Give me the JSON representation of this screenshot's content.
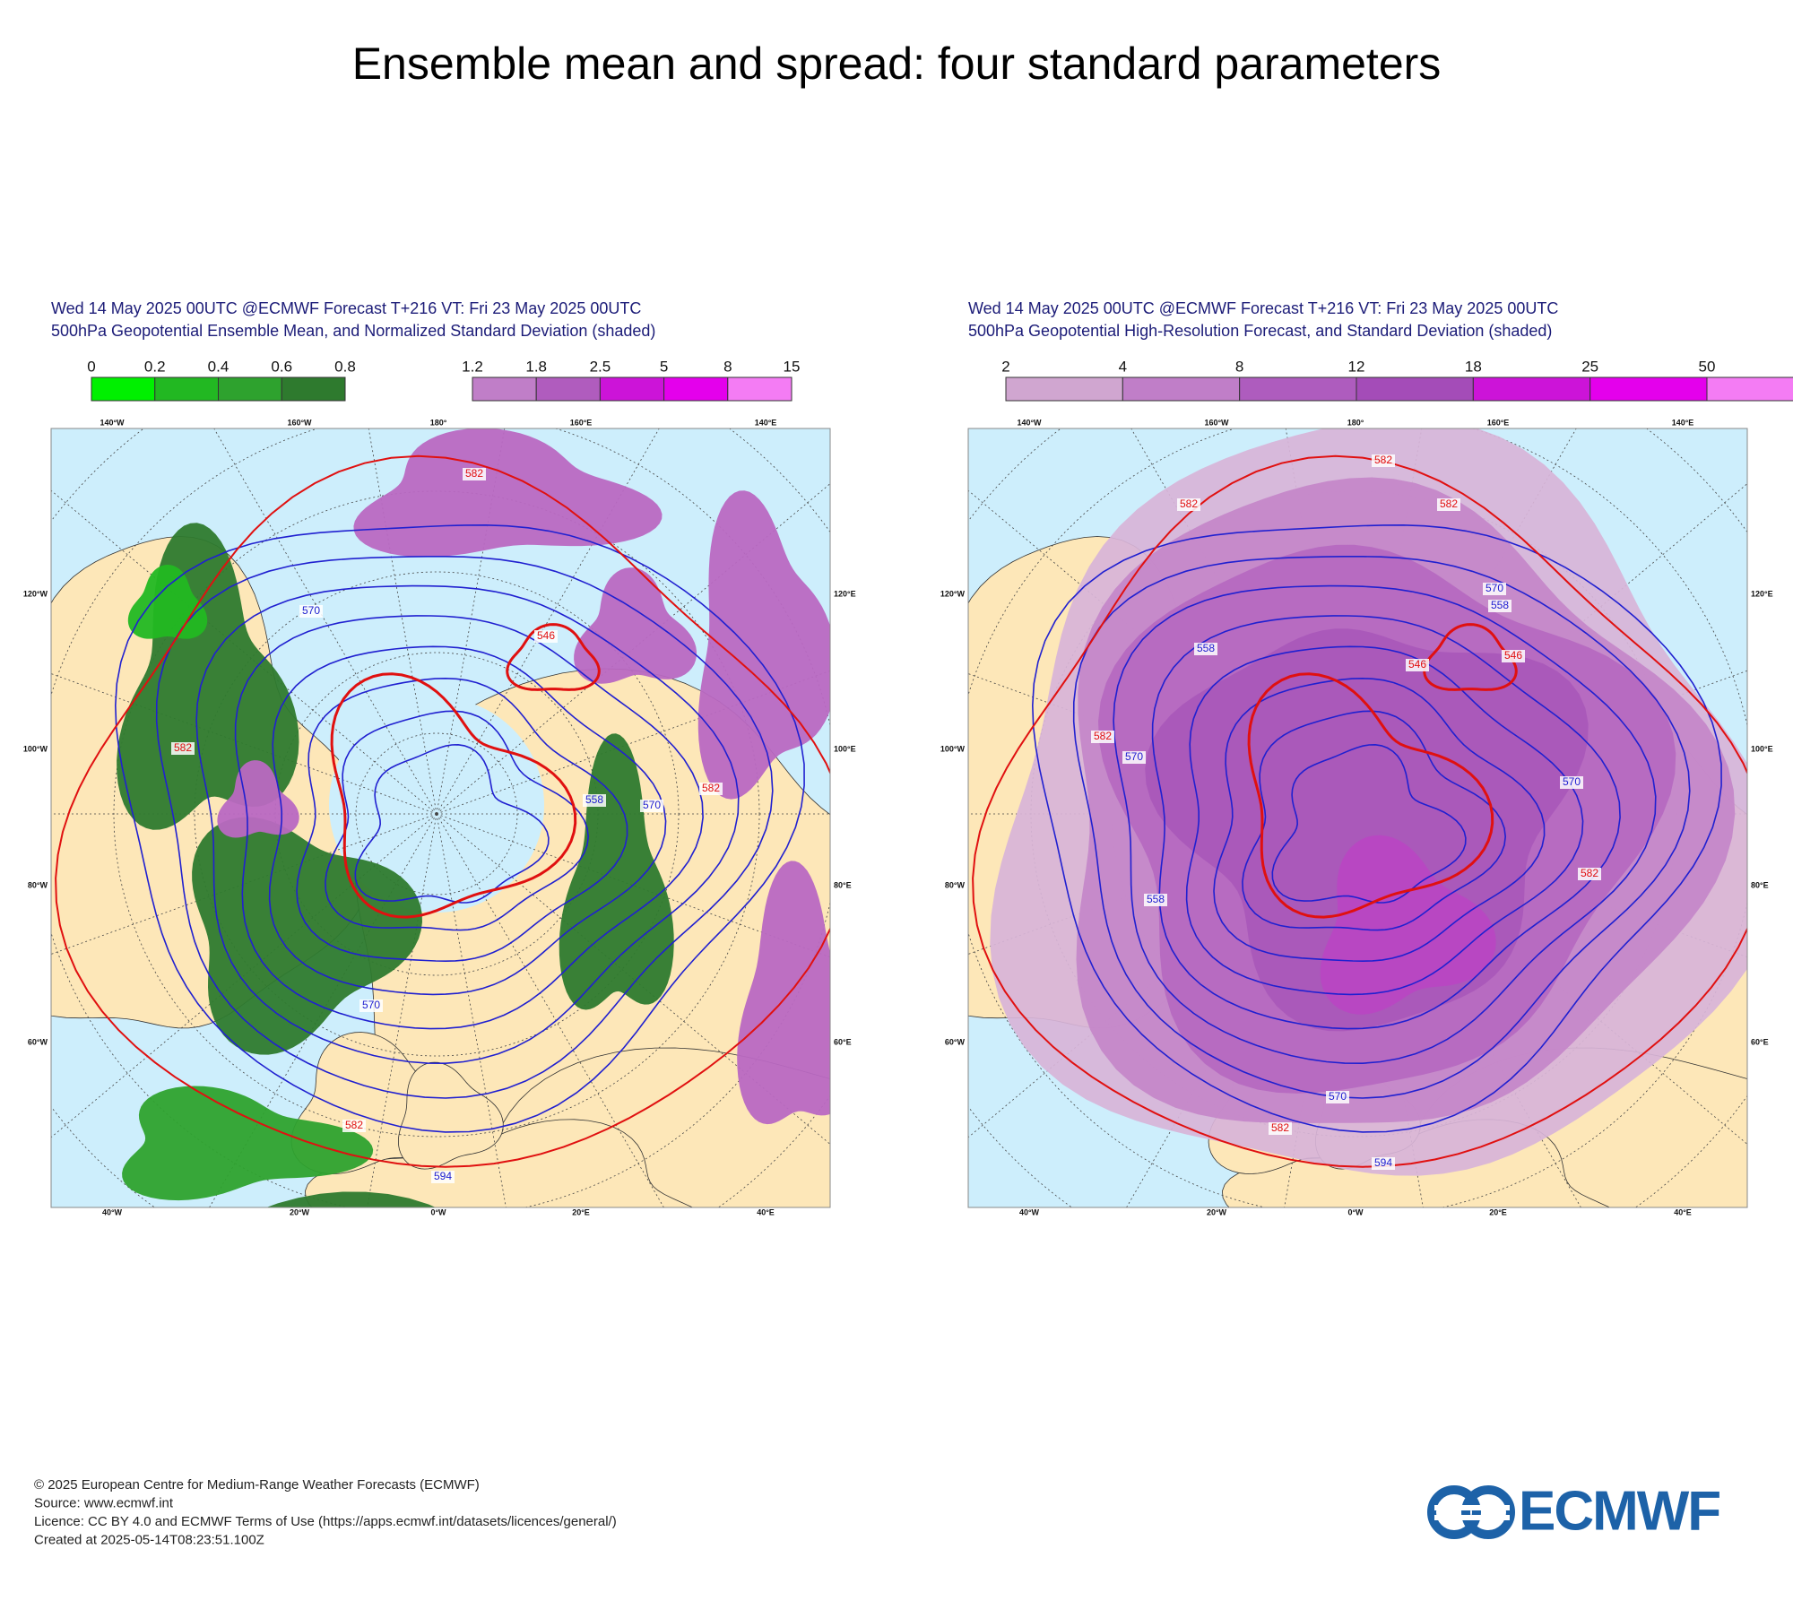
{
  "title": "Ensemble mean and spread: four standard parameters",
  "panels": [
    {
      "header": [
        "Wed 14 May 2025 00UTC @ECMWF Forecast T+216 VT: Fri 23 May 2025 00UTC",
        "500hPa Geopotential Ensemble Mean, and Normalized Standard Deviation (shaded)"
      ],
      "colorbars": [
        {
          "labels": [
            "0",
            "0.2",
            "0.4",
            "0.6",
            "0.8"
          ],
          "colors": [
            "#00f000",
            "#22b822",
            "#2ea22e",
            "#2e7a2e"
          ]
        },
        {
          "labels": [
            "1.2",
            "1.8",
            "2.5",
            "5",
            "8",
            "15"
          ],
          "colors": [
            "#c07ec8",
            "#b05cbe",
            "#cc14d8",
            "#e400ec",
            "#f47cf4"
          ]
        }
      ],
      "lon_top": [
        "140°W",
        "160°W",
        "180°",
        "160°E",
        "140°E"
      ],
      "lat_left": [
        "120°W",
        "100°W",
        "80°W",
        "60°W"
      ],
      "lat_right": [
        "120°E",
        "100°E",
        "80°E",
        "60°E"
      ],
      "lon_bottom": [
        "40°W",
        "20°W",
        "0°W",
        "20°E",
        "40°E"
      ],
      "contour_labels": [
        "582",
        "570",
        "546",
        "582",
        "558",
        "570",
        "582",
        "570",
        "582",
        "594"
      ]
    },
    {
      "header": [
        "Wed 14 May 2025 00UTC @ECMWF Forecast T+216 VT: Fri 23 May 2025 00UTC",
        "500hPa Geopotential High-Resolution Forecast, and Standard Deviation (shaded)"
      ],
      "colorbars": [
        {
          "labels": [
            "2",
            "4",
            "8",
            "12",
            "18",
            "25",
            "50"
          ],
          "colors": [
            "#d0a6d0",
            "#c07ec8",
            "#ae5cbe",
            "#a44cb8",
            "#cc14d8",
            "#e400ec",
            "#f47cf4"
          ]
        }
      ],
      "lon_top": [
        "140°W",
        "160°W",
        "180°",
        "160°E",
        "140°E"
      ],
      "lat_left": [
        "120°W",
        "100°W",
        "80°W",
        "60°W"
      ],
      "lat_right": [
        "120°E",
        "100°E",
        "80°E",
        "60°E"
      ],
      "lon_bottom": [
        "40°W",
        "20°W",
        "0°W",
        "20°E",
        "40°E"
      ],
      "contour_labels": [
        "582",
        "582",
        "582",
        "570",
        "558",
        "558",
        "546",
        "546",
        "582",
        "570",
        "558",
        "570",
        "582",
        "594",
        "582",
        "570"
      ]
    }
  ],
  "footer": [
    "© 2025 European Centre for Medium-Range Weather Forecasts (ECMWF)",
    "Source: www.ecmwf.int",
    "Licence: CC BY 4.0 and ECMWF Terms of Use (https://apps.ecmwf.int/datasets/licences/general/)",
    "Created at 2025-05-14T08:23:51.100Z"
  ],
  "logo": "ECMWF"
}
